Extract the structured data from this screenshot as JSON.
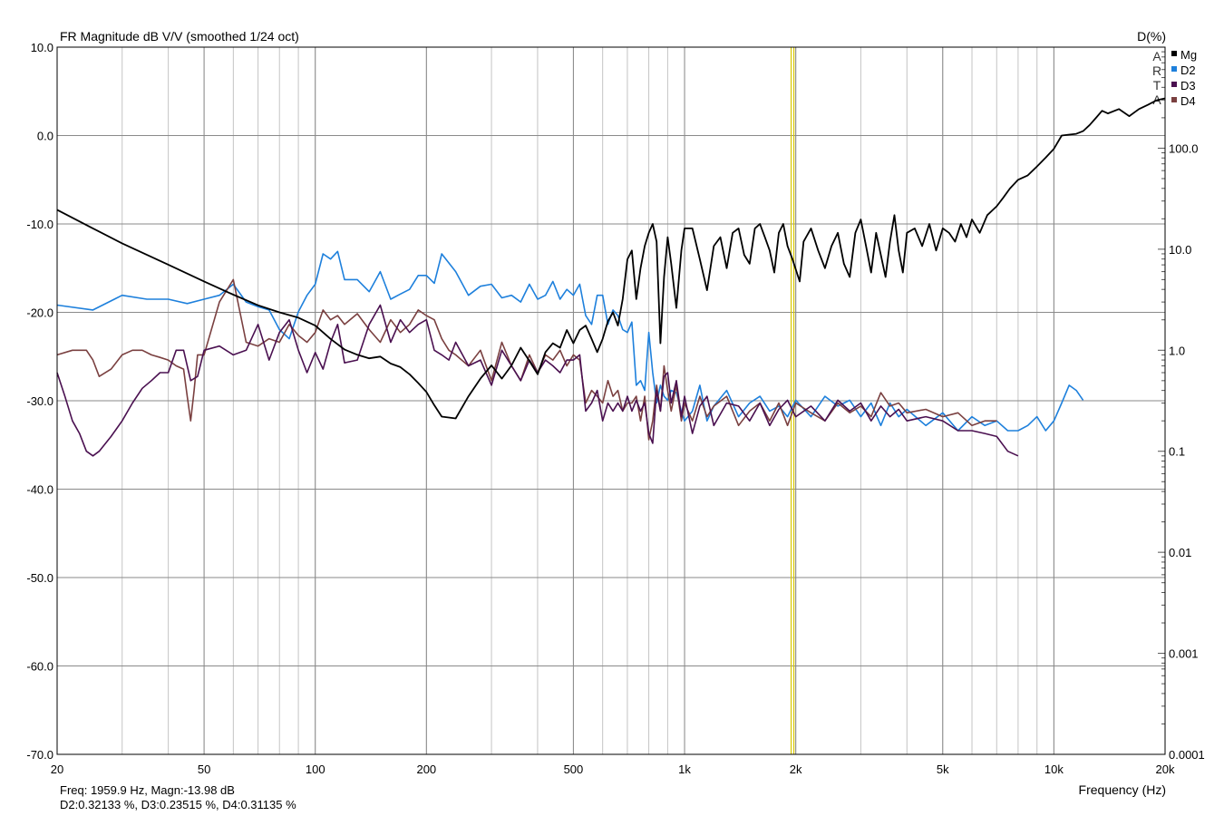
{
  "chart_data": {
    "type": "line",
    "title": "FR Magnitude dB V/V (smoothed 1/24 oct)",
    "right_axis_title": "D(%)",
    "xlabel": "Frequency (Hz)",
    "x_scale": "log",
    "xlim": [
      20,
      20000
    ],
    "x_ticks": [
      {
        "v": 20,
        "t": "20"
      },
      {
        "v": 50,
        "t": "50"
      },
      {
        "v": 100,
        "t": "100"
      },
      {
        "v": 200,
        "t": "200"
      },
      {
        "v": 500,
        "t": "500"
      },
      {
        "v": 1000,
        "t": "1k"
      },
      {
        "v": 2000,
        "t": "2k"
      },
      {
        "v": 5000,
        "t": "5k"
      },
      {
        "v": 10000,
        "t": "10k"
      },
      {
        "v": 20000,
        "t": "20k"
      }
    ],
    "ylim": [
      -70,
      10
    ],
    "y_ticks": [
      "10.0",
      "0.0",
      "-10.0",
      "-20.0",
      "-30.0",
      "-40.0",
      "-50.0",
      "-60.0",
      "-70.0"
    ],
    "y2_scale": "log",
    "y2lim": [
      0.0001,
      1000
    ],
    "y2_ticks": [
      {
        "v": 100,
        "t": "100.0"
      },
      {
        "v": 10,
        "t": "10.0"
      },
      {
        "v": 1,
        "t": "1.0"
      },
      {
        "v": 0.1,
        "t": "0.1"
      },
      {
        "v": 0.01,
        "t": "0.01"
      },
      {
        "v": 0.001,
        "t": "0.001"
      },
      {
        "v": 0.0001,
        "t": "0.0001"
      }
    ],
    "grid": true,
    "legend_position": "top-right",
    "watermark": "ARTA",
    "cursor": {
      "freq": 1959.9,
      "color": "#d8c800"
    },
    "readout": {
      "line1": "Freq: 1959.9 Hz, Magn:-13.98 dB",
      "line2": "D2:0.32133 %, D3:0.23515 %, D4:0.31135 %"
    },
    "series": [
      {
        "name": "Mg",
        "axis": "left",
        "color": "#000000",
        "x": [
          20,
          25,
          30,
          40,
          50,
          60,
          70,
          80,
          90,
          100,
          110,
          120,
          130,
          140,
          150,
          160,
          170,
          180,
          190,
          200,
          210,
          220,
          240,
          260,
          280,
          300,
          320,
          340,
          360,
          380,
          400,
          420,
          440,
          460,
          480,
          500,
          520,
          540,
          560,
          580,
          600,
          620,
          640,
          660,
          680,
          700,
          720,
          740,
          760,
          780,
          800,
          820,
          840,
          860,
          880,
          900,
          920,
          950,
          980,
          1000,
          1050,
          1100,
          1150,
          1200,
          1250,
          1300,
          1350,
          1400,
          1450,
          1500,
          1550,
          1600,
          1650,
          1700,
          1750,
          1800,
          1850,
          1900,
          1960,
          2050,
          2100,
          2200,
          2300,
          2400,
          2500,
          2600,
          2700,
          2800,
          2900,
          3000,
          3100,
          3200,
          3300,
          3400,
          3500,
          3600,
          3700,
          3800,
          3900,
          4000,
          4200,
          4400,
          4600,
          4800,
          5000,
          5200,
          5400,
          5600,
          5800,
          6000,
          6300,
          6600,
          7000,
          7300,
          7600,
          8000,
          8500,
          9000,
          9500,
          10000,
          10500,
          11000,
          11500,
          12000,
          12500,
          13000,
          13500,
          14000,
          15000,
          16000,
          17000,
          18000,
          19000,
          20000
        ],
        "y": [
          -8.4,
          -10.5,
          -12.2,
          -14.6,
          -16.5,
          -18.0,
          -19.2,
          -20.0,
          -20.6,
          -21.5,
          -23.0,
          -24.2,
          -24.8,
          -25.2,
          -25.0,
          -25.8,
          -26.2,
          -27.0,
          -28.0,
          -29.0,
          -30.5,
          -31.8,
          -32.0,
          -29.5,
          -27.5,
          -26.0,
          -27.5,
          -26.0,
          -24.0,
          -25.5,
          -27.0,
          -24.5,
          -23.5,
          -24.0,
          -22.0,
          -23.5,
          -22.0,
          -21.5,
          -23.0,
          -24.5,
          -23.0,
          -21.0,
          -20.0,
          -21.5,
          -18.5,
          -14.0,
          -13.0,
          -18.5,
          -15.0,
          -12.5,
          -11.0,
          -10.0,
          -12.0,
          -23.5,
          -16.0,
          -11.5,
          -14.5,
          -19.5,
          -13.0,
          -10.5,
          -10.5,
          -14.0,
          -17.5,
          -12.5,
          -11.5,
          -15.0,
          -11.0,
          -10.5,
          -13.5,
          -14.5,
          -10.5,
          -10.0,
          -11.5,
          -13.0,
          -15.5,
          -11.0,
          -10.0,
          -12.5,
          -14.0,
          -16.5,
          -12.0,
          -10.5,
          -13.0,
          -15.0,
          -12.5,
          -11.0,
          -14.5,
          -16.0,
          -11.0,
          -9.5,
          -12.5,
          -15.5,
          -11.0,
          -13.5,
          -16.0,
          -12.0,
          -9.0,
          -13.0,
          -15.5,
          -11.0,
          -10.5,
          -12.5,
          -10.0,
          -13.0,
          -10.5,
          -11.0,
          -12.0,
          -10.0,
          -11.5,
          -9.5,
          -11.0,
          -9.0,
          -8.0,
          -7.0,
          -6.0,
          -5.0,
          -4.5,
          -3.5,
          -2.5,
          -1.5,
          0.0,
          0.1,
          0.2,
          0.5,
          1.2,
          2.0,
          2.8,
          2.5,
          3.0,
          2.2,
          3.0,
          3.5,
          4.0,
          4.2
        ]
      },
      {
        "name": "D2",
        "axis": "right",
        "color": "#1e80dc",
        "x": [
          20,
          25,
          30,
          35,
          40,
          45,
          50,
          55,
          60,
          65,
          70,
          75,
          80,
          85,
          90,
          95,
          100,
          105,
          110,
          115,
          120,
          130,
          140,
          150,
          160,
          170,
          180,
          190,
          200,
          210,
          220,
          240,
          260,
          280,
          300,
          320,
          340,
          360,
          380,
          400,
          420,
          440,
          460,
          480,
          500,
          520,
          540,
          560,
          580,
          600,
          620,
          640,
          660,
          680,
          700,
          720,
          740,
          760,
          780,
          800,
          820,
          840,
          860,
          880,
          900,
          920,
          950,
          980,
          1000,
          1050,
          1100,
          1150,
          1200,
          1300,
          1400,
          1500,
          1600,
          1700,
          1800,
          1900,
          2000,
          2200,
          2400,
          2600,
          2800,
          3000,
          3200,
          3400,
          3600,
          3800,
          4000,
          4500,
          5000,
          5500,
          6000,
          6500,
          7000,
          7500,
          8000,
          8500,
          9000,
          9500,
          10000,
          10500,
          11000,
          11500,
          12000
        ],
        "y": [
          2.8,
          2.5,
          3.5,
          3.2,
          3.2,
          2.9,
          3.2,
          3.5,
          4.5,
          3.0,
          2.7,
          2.5,
          1.6,
          1.3,
          2.4,
          3.5,
          4.5,
          9.0,
          8.0,
          9.5,
          5.0,
          5.0,
          3.8,
          6.0,
          3.2,
          3.6,
          4.0,
          5.5,
          5.5,
          4.6,
          9.0,
          6.0,
          3.5,
          4.3,
          4.5,
          3.3,
          3.5,
          3.0,
          4.5,
          3.2,
          3.5,
          4.8,
          3.2,
          4.0,
          3.5,
          4.5,
          2.2,
          1.8,
          3.5,
          3.5,
          1.8,
          2.5,
          2.2,
          1.6,
          1.5,
          1.9,
          0.45,
          0.5,
          0.4,
          1.5,
          0.6,
          0.3,
          0.45,
          0.35,
          0.32,
          0.4,
          0.38,
          0.25,
          0.2,
          0.25,
          0.45,
          0.2,
          0.28,
          0.4,
          0.22,
          0.3,
          0.35,
          0.25,
          0.28,
          0.22,
          0.32,
          0.22,
          0.35,
          0.28,
          0.32,
          0.22,
          0.3,
          0.18,
          0.3,
          0.22,
          0.26,
          0.18,
          0.24,
          0.16,
          0.22,
          0.18,
          0.2,
          0.16,
          0.16,
          0.18,
          0.22,
          0.16,
          0.2,
          0.3,
          0.45,
          0.4,
          0.32
        ]
      },
      {
        "name": "D3",
        "axis": "right",
        "color": "#4a1050",
        "x": [
          20,
          21,
          22,
          23,
          24,
          25,
          26,
          28,
          30,
          32,
          34,
          36,
          38,
          40,
          42,
          44,
          46,
          48,
          50,
          55,
          60,
          65,
          70,
          75,
          80,
          85,
          90,
          95,
          100,
          105,
          110,
          115,
          120,
          130,
          140,
          150,
          160,
          170,
          180,
          190,
          200,
          210,
          220,
          230,
          240,
          260,
          280,
          300,
          320,
          340,
          360,
          380,
          400,
          420,
          440,
          460,
          480,
          500,
          520,
          540,
          560,
          580,
          600,
          620,
          640,
          660,
          680,
          700,
          720,
          740,
          760,
          780,
          800,
          820,
          840,
          860,
          880,
          900,
          920,
          950,
          980,
          1000,
          1050,
          1100,
          1150,
          1200,
          1300,
          1400,
          1500,
          1600,
          1700,
          1800,
          1900,
          2000,
          2200,
          2400,
          2600,
          2800,
          3000,
          3200,
          3400,
          3600,
          3800,
          4000,
          4500,
          5000,
          5500,
          6000,
          6500,
          7000,
          7500,
          8000
        ],
        "y": [
          0.6,
          0.35,
          0.2,
          0.15,
          0.1,
          0.09,
          0.1,
          0.14,
          0.2,
          0.3,
          0.42,
          0.5,
          0.6,
          0.6,
          1.0,
          1.0,
          0.5,
          0.55,
          1.0,
          1.1,
          0.9,
          1.0,
          1.8,
          0.8,
          1.5,
          2.0,
          1.0,
          0.6,
          0.95,
          0.65,
          1.2,
          1.8,
          0.75,
          0.8,
          1.8,
          2.8,
          1.2,
          2.0,
          1.5,
          1.8,
          2.0,
          1.0,
          0.9,
          0.8,
          1.2,
          0.7,
          0.8,
          0.45,
          1.0,
          0.7,
          0.5,
          0.8,
          0.6,
          0.8,
          0.7,
          0.6,
          0.8,
          0.8,
          0.9,
          0.25,
          0.3,
          0.4,
          0.2,
          0.3,
          0.25,
          0.3,
          0.25,
          0.35,
          0.25,
          0.32,
          0.25,
          0.3,
          0.15,
          0.12,
          0.4,
          0.25,
          0.55,
          0.6,
          0.3,
          0.5,
          0.22,
          0.35,
          0.15,
          0.28,
          0.35,
          0.18,
          0.3,
          0.28,
          0.2,
          0.3,
          0.18,
          0.26,
          0.32,
          0.22,
          0.28,
          0.2,
          0.32,
          0.25,
          0.3,
          0.2,
          0.28,
          0.22,
          0.26,
          0.2,
          0.22,
          0.2,
          0.16,
          0.16,
          0.15,
          0.14,
          0.1,
          0.09
        ]
      },
      {
        "name": "D4",
        "axis": "right",
        "color": "#7a4040",
        "x": [
          20,
          22,
          24,
          25,
          26,
          28,
          30,
          32,
          34,
          36,
          38,
          40,
          42,
          44,
          45,
          46,
          47,
          48,
          50,
          55,
          60,
          65,
          70,
          75,
          80,
          85,
          90,
          95,
          100,
          105,
          110,
          115,
          120,
          130,
          140,
          150,
          160,
          170,
          180,
          190,
          200,
          210,
          220,
          230,
          240,
          260,
          280,
          300,
          320,
          340,
          360,
          380,
          400,
          420,
          440,
          460,
          480,
          500,
          520,
          540,
          560,
          580,
          600,
          620,
          640,
          660,
          680,
          700,
          720,
          740,
          760,
          780,
          800,
          820,
          840,
          860,
          880,
          900,
          920,
          950,
          980,
          1000,
          1050,
          1100,
          1150,
          1200,
          1300,
          1400,
          1500,
          1600,
          1700,
          1800,
          1900,
          2000,
          2200,
          2400,
          2600,
          2800,
          3000,
          3200,
          3400,
          3600,
          3800,
          4000,
          4500,
          5000,
          5500,
          6000,
          6500,
          7000
        ],
        "y": [
          0.9,
          1.0,
          1.0,
          0.8,
          0.55,
          0.65,
          0.9,
          1.0,
          1.0,
          0.9,
          0.85,
          0.8,
          0.7,
          0.65,
          0.35,
          0.2,
          0.4,
          0.9,
          0.9,
          3.0,
          5.0,
          1.2,
          1.1,
          1.3,
          1.2,
          1.8,
          1.4,
          1.2,
          1.5,
          2.5,
          2.0,
          2.2,
          1.8,
          2.3,
          1.6,
          1.2,
          2.0,
          1.5,
          1.8,
          2.5,
          2.2,
          2.0,
          1.3,
          1.0,
          0.9,
          0.7,
          1.0,
          0.5,
          1.2,
          0.7,
          0.5,
          0.9,
          0.6,
          0.9,
          0.8,
          1.0,
          0.7,
          0.9,
          0.8,
          0.3,
          0.4,
          0.35,
          0.3,
          0.5,
          0.35,
          0.4,
          0.25,
          0.3,
          0.3,
          0.35,
          0.2,
          0.35,
          0.13,
          0.2,
          0.45,
          0.25,
          0.7,
          0.4,
          0.25,
          0.45,
          0.2,
          0.3,
          0.2,
          0.35,
          0.22,
          0.28,
          0.35,
          0.18,
          0.25,
          0.3,
          0.2,
          0.3,
          0.18,
          0.3,
          0.24,
          0.2,
          0.3,
          0.24,
          0.28,
          0.22,
          0.38,
          0.28,
          0.3,
          0.24,
          0.26,
          0.22,
          0.24,
          0.18,
          0.2,
          0.2
        ]
      }
    ]
  }
}
